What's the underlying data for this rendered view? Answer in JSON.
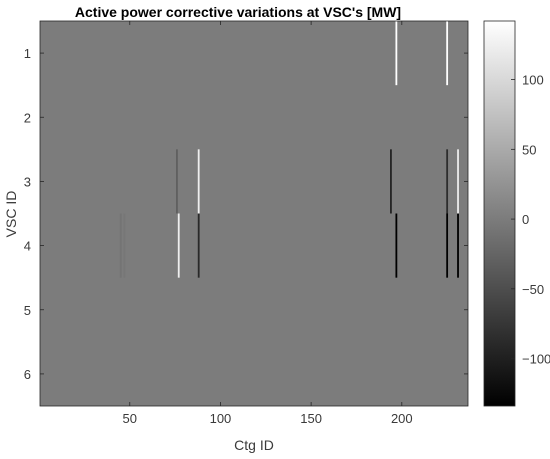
{
  "chart_data": {
    "type": "heatmap",
    "title": "Active power corrective variations at VSC's [MW]",
    "xlabel": "Ctg ID",
    "ylabel": "VSC ID",
    "xlim": [
      0.5,
      236.5
    ],
    "ylim": [
      0.5,
      6.5
    ],
    "y_reversed": true,
    "xticks": [
      50,
      100,
      150,
      200
    ],
    "yticks": [
      1,
      2,
      3,
      4,
      5,
      6
    ],
    "background_value": 0,
    "colormap": "gray",
    "colorbar": {
      "range": [
        -134,
        142
      ],
      "ticks": [
        -100,
        -50,
        0,
        50,
        100
      ]
    },
    "cells": [
      {
        "vsc": 1,
        "ctg": 197,
        "value": 142
      },
      {
        "vsc": 1,
        "ctg": 225,
        "value": 142
      },
      {
        "vsc": 3,
        "ctg": 76,
        "value": -30
      },
      {
        "vsc": 3,
        "ctg": 88,
        "value": 125
      },
      {
        "vsc": 3,
        "ctg": 194,
        "value": -95
      },
      {
        "vsc": 3,
        "ctg": 225,
        "value": -85
      },
      {
        "vsc": 3,
        "ctg": 231,
        "value": 120
      },
      {
        "vsc": 4,
        "ctg": 45,
        "value": -8
      },
      {
        "vsc": 4,
        "ctg": 47,
        "value": -5
      },
      {
        "vsc": 4,
        "ctg": 77,
        "value": 125
      },
      {
        "vsc": 4,
        "ctg": 88,
        "value": -90
      },
      {
        "vsc": 4,
        "ctg": 197,
        "value": -134
      },
      {
        "vsc": 4,
        "ctg": 225,
        "value": -134
      },
      {
        "vsc": 4,
        "ctg": 231,
        "value": -134
      }
    ]
  }
}
